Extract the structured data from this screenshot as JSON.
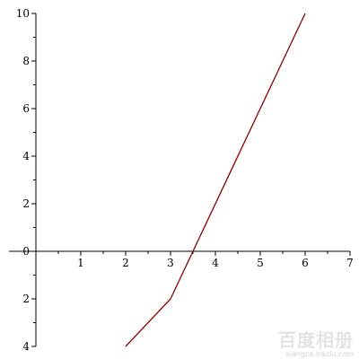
{
  "chart_data": {
    "type": "line",
    "title": "",
    "xlabel": "",
    "ylabel": "",
    "xlim": [
      -0.6,
      7
    ],
    "ylim": [
      -4,
      10
    ],
    "grid": false,
    "x_ticks": [
      1,
      2,
      3,
      4,
      5,
      6,
      7
    ],
    "y_ticks": [
      0,
      2,
      4,
      6,
      8,
      10
    ],
    "x_tick_labels": [
      "1",
      "2",
      "3",
      "4",
      "5",
      "6",
      "7"
    ],
    "y_tick_labels": [
      "0",
      "2",
      "4",
      "6",
      "8",
      "10"
    ],
    "y_neg_ticks": [
      -2,
      -4
    ],
    "y_neg_tick_labels": [
      "2",
      "4"
    ],
    "series": [
      {
        "color": "#8b0000",
        "points": [
          [
            2,
            -4
          ],
          [
            3,
            -2
          ],
          [
            6,
            10
          ]
        ]
      }
    ]
  },
  "watermark": {
    "text": "百度相册",
    "subtext": "xiangce.baidu.com"
  }
}
